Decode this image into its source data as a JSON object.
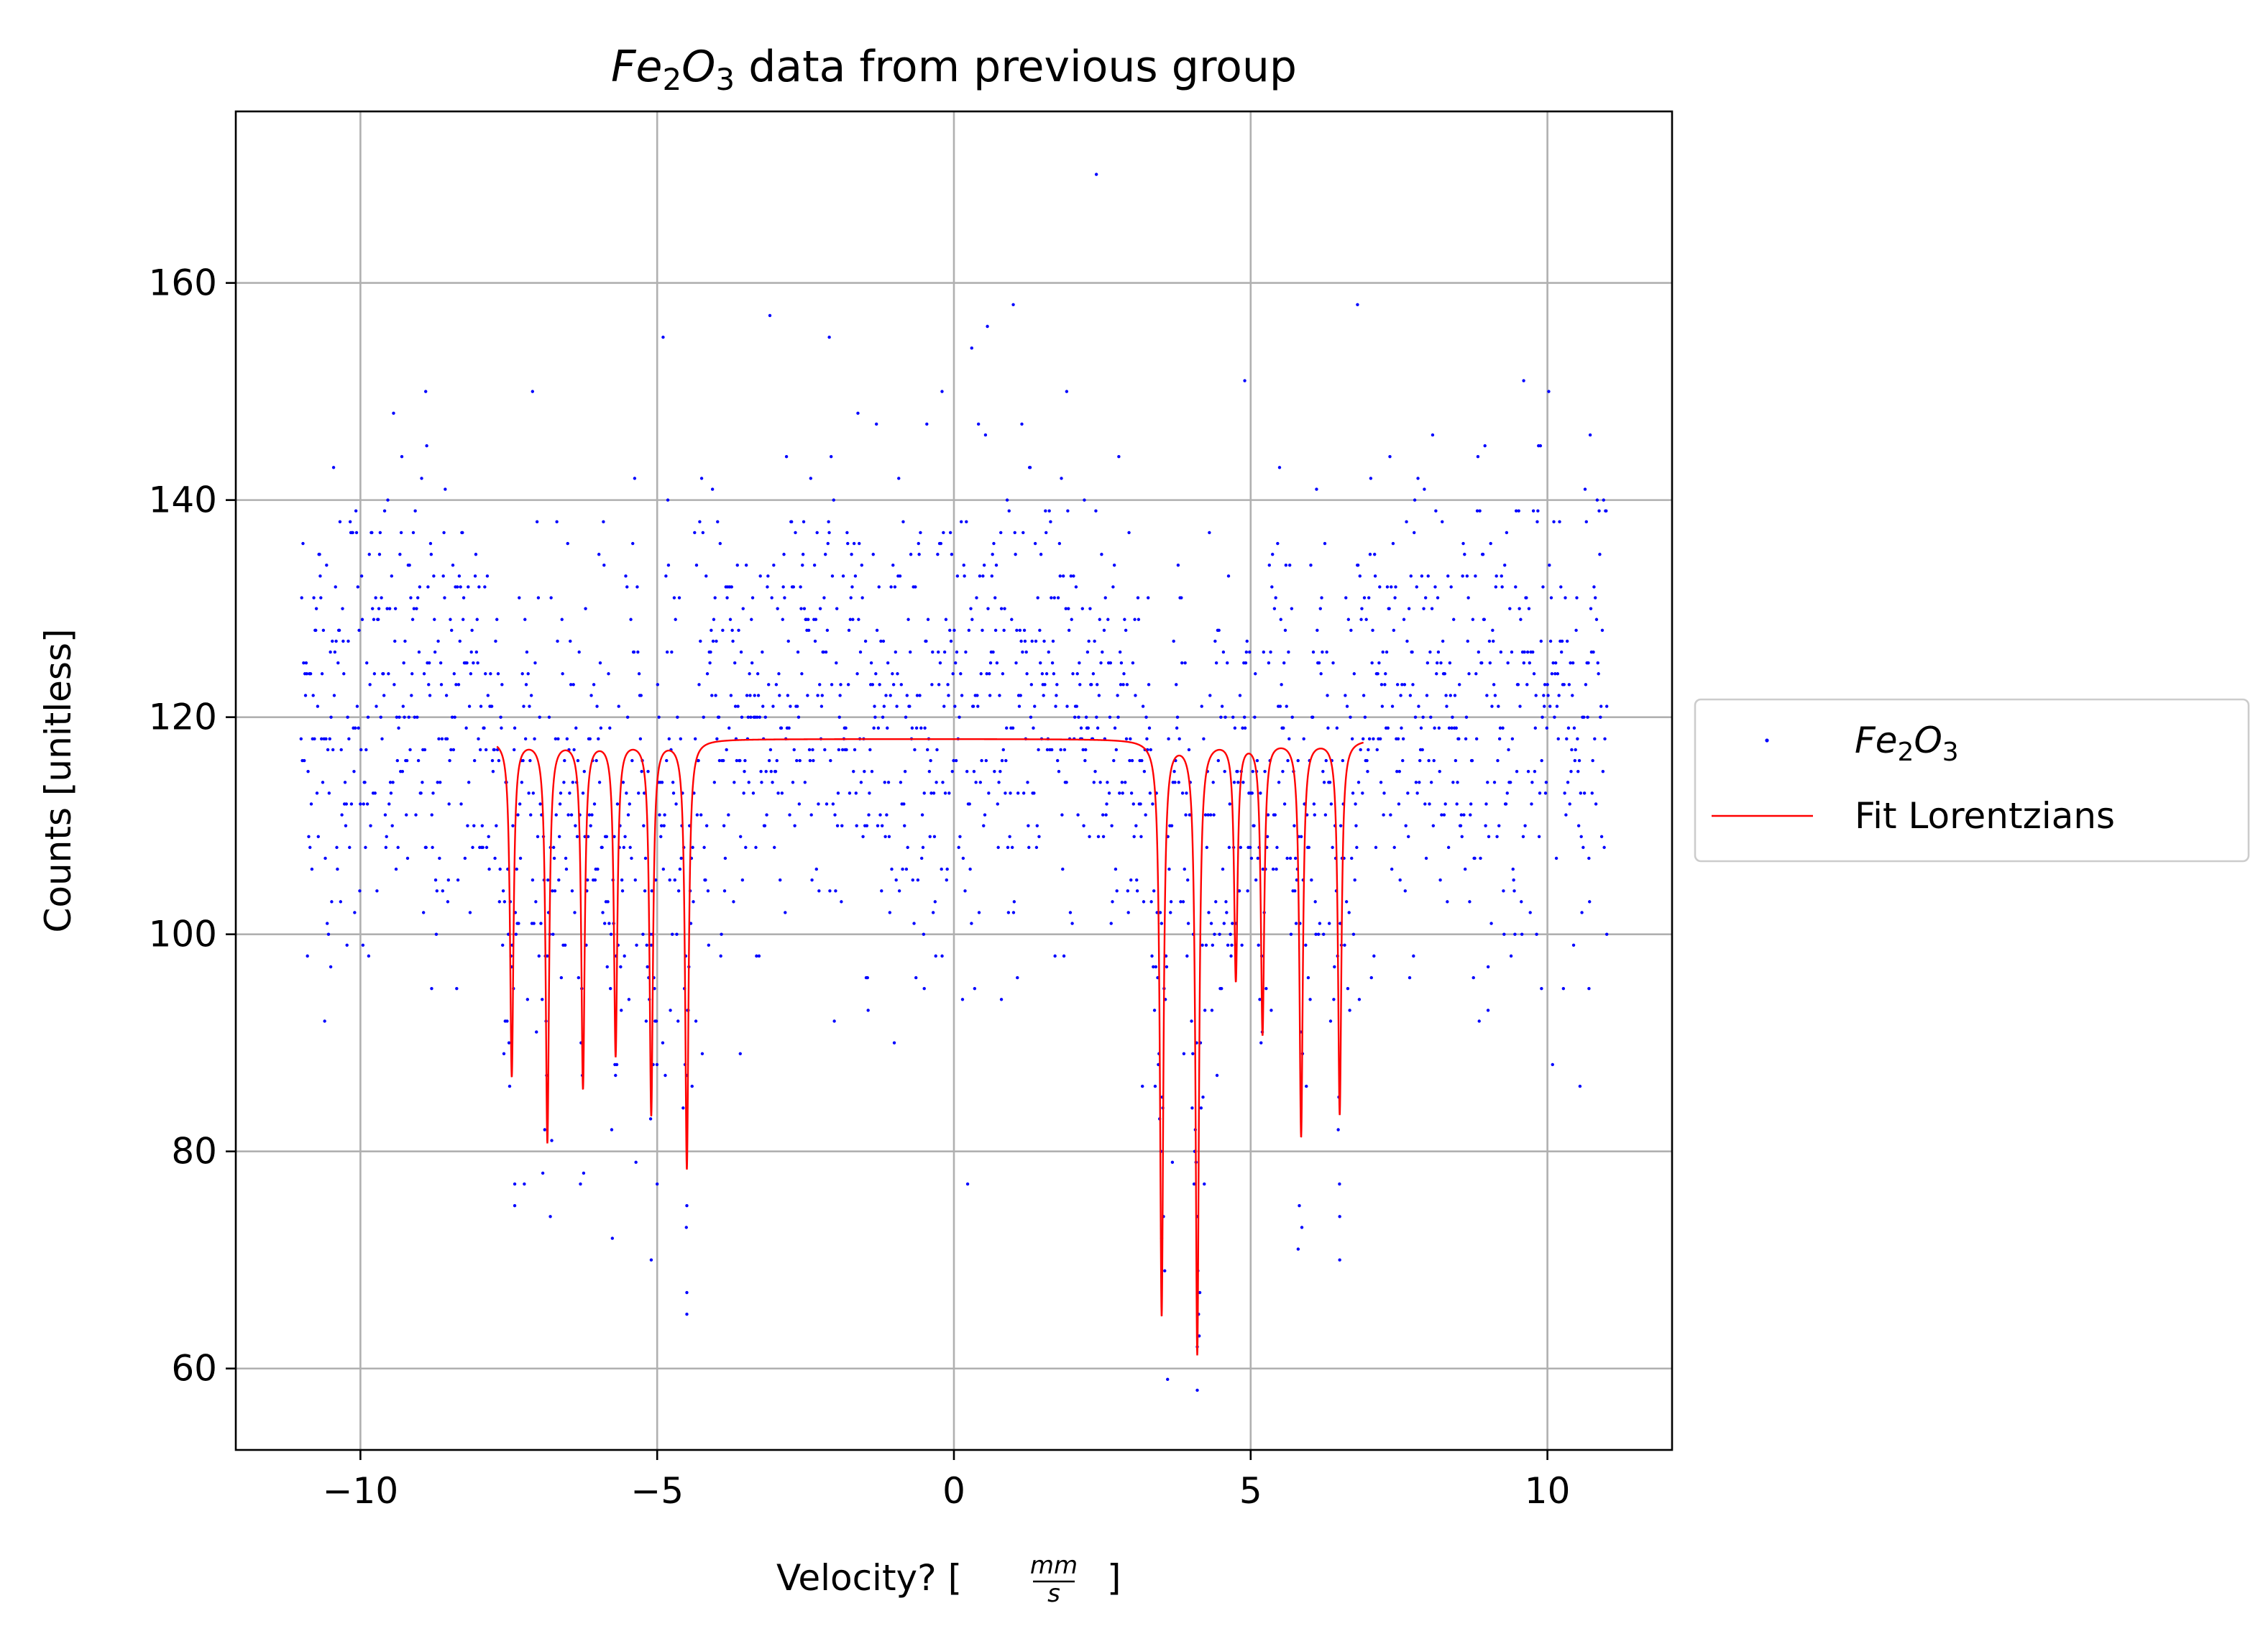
{
  "chart_data": {
    "type": "scatter",
    "title": {
      "italic": "Fe",
      "sub1": "2",
      "italic2": "O",
      "sub2": "3",
      "rest": " data from previous group"
    },
    "xlabel": {
      "text": "Velocity? [",
      "frac_num": "mm",
      "frac_den": "s",
      "close": "]"
    },
    "ylabel": "Counts [unitless]",
    "xlim": [
      -12.1,
      12.1
    ],
    "ylim": [
      52.5,
      175.8
    ],
    "xticks": [
      -10,
      -5,
      0,
      5,
      10
    ],
    "xtick_labels": [
      "−10",
      "−5",
      "0",
      "5",
      "10"
    ],
    "yticks": [
      60,
      80,
      100,
      120,
      140,
      160
    ],
    "ytick_labels": [
      "60",
      "80",
      "100",
      "120",
      "140",
      "160"
    ],
    "grid": true,
    "legend_placement": "outside-right",
    "colors": {
      "data": "#0000ff",
      "fit": "#ff0000",
      "grid": "#b0b0b0",
      "axes": "#000000",
      "legend_border": "#cccccc"
    },
    "series": [
      {
        "name": "Fe2O3",
        "legend": {
          "base": "Fe",
          "sub1": "2",
          "base2": "O",
          "sub2": "3"
        },
        "marker": "point",
        "x_range": [
          -11,
          11
        ],
        "n_points": 2048,
        "baseline": 121,
        "noise_sd": 11,
        "points": [
          [
            2.4,
            170
          ],
          [
            1.0,
            158
          ],
          [
            6.8,
            158
          ],
          [
            -4.9,
            155
          ],
          [
            -2.1,
            155
          ],
          [
            0.3,
            154
          ],
          [
            4.9,
            151
          ],
          [
            9.6,
            151
          ],
          [
            -7.1,
            150
          ],
          [
            -8.9,
            150
          ],
          [
            -0.2,
            150
          ],
          [
            1.9,
            150
          ],
          [
            -3.6,
            89
          ],
          [
            0.8,
            94
          ],
          [
            -0.5,
            95
          ],
          [
            3.6,
            59
          ],
          [
            4.1,
            58
          ],
          [
            -5.1,
            70
          ],
          [
            -4.5,
            65
          ],
          [
            -4.5,
            67
          ],
          [
            5.8,
            71
          ],
          [
            6.5,
            70
          ],
          [
            -7.4,
            77
          ],
          [
            -7.4,
            75
          ],
          [
            -6.8,
            74
          ],
          [
            -5.0,
            77
          ],
          [
            -4.5,
            75
          ],
          [
            3.5,
            72
          ],
          [
            4.1,
            74
          ],
          [
            6.5,
            74
          ],
          [
            9.9,
            95
          ],
          [
            10.7,
            95
          ],
          [
            9.0,
            93
          ],
          [
            -8.8,
            95
          ],
          [
            -10.5,
            97
          ],
          [
            11.0,
            100
          ]
        ]
      },
      {
        "name": "Fit Lorentzians",
        "type": "line",
        "baseline": 118,
        "x_range": [
          -7.7,
          6.9
        ],
        "peaks": [
          {
            "x0": -7.45,
            "depth": 31
          },
          {
            "x0": -6.85,
            "depth": 37
          },
          {
            "x0": -6.25,
            "depth": 32
          },
          {
            "x0": -5.7,
            "depth": 29
          },
          {
            "x0": -5.1,
            "depth": 34.5
          },
          {
            "x0": -4.5,
            "depth": 39.5
          },
          {
            "x0": 3.5,
            "depth": 53
          },
          {
            "x0": 4.1,
            "depth": 56.5
          },
          {
            "x0": 4.75,
            "depth": 22
          },
          {
            "x0": 5.2,
            "depth": 27
          },
          {
            "x0": 5.85,
            "depth": 36.5
          },
          {
            "x0": 6.5,
            "depth": 34.5
          }
        ],
        "width": 0.035
      }
    ],
    "legend": {
      "entries": [
        "Fe2O3",
        "Fit Lorentzians"
      ],
      "label_fit": "Fit Lorentzians"
    }
  }
}
